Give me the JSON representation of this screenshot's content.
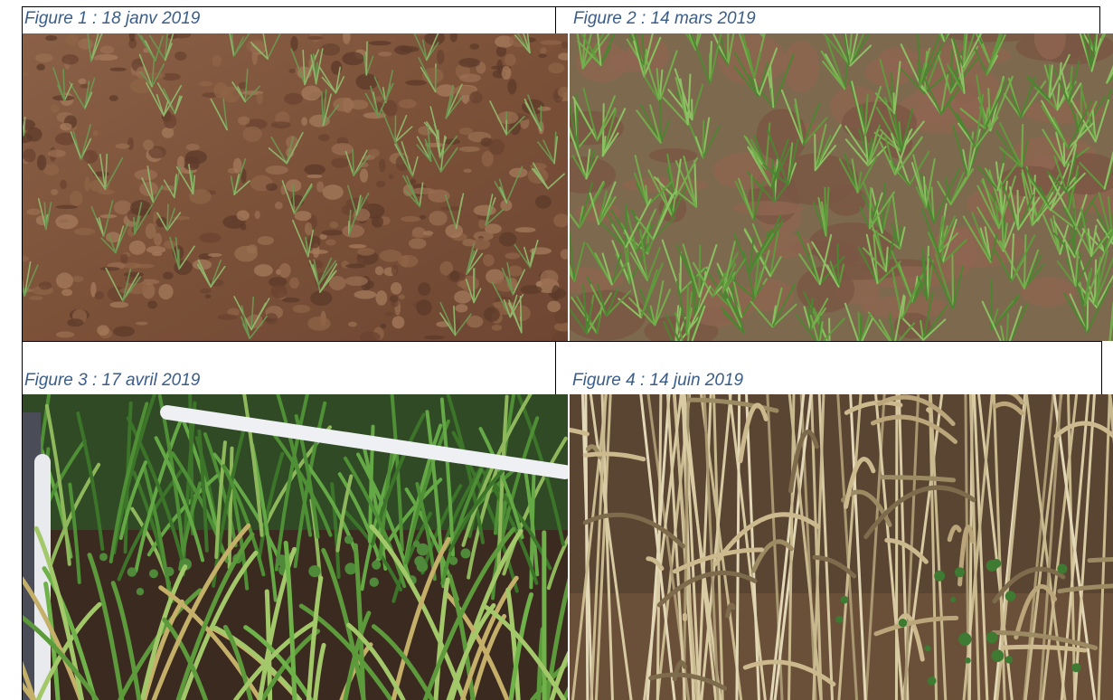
{
  "captions": {
    "fig1": "Figure 1 : 18 janv 2019",
    "fig2": "Figure 2 : 14 mars 2019",
    "fig3": "Figure 3 : 17 avril 2019",
    "fig4": "Figure 4 : 14 juin 2019"
  },
  "colors": {
    "caption": "#3a5d8a",
    "soil_dry": "#8b5a3c",
    "soil_dark": "#3b2a1f",
    "grass_green": "#5f9a3c",
    "straw": "#b9a77e"
  }
}
